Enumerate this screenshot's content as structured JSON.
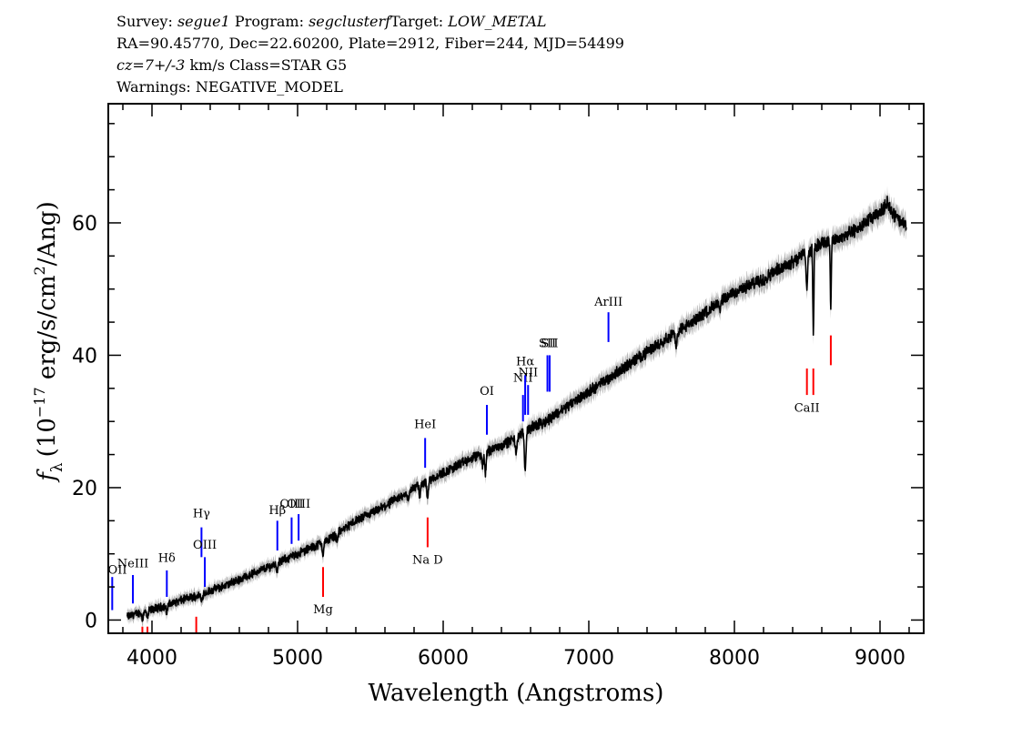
{
  "header": {
    "line1": {
      "survey_label": "Survey:",
      "survey": "segue1",
      "program_label": "Program:",
      "program": "segclusterf",
      "target_label": "Target:",
      "target": "LOW_METAL"
    },
    "line2": "RA=90.45770, Dec=22.60200, Plate=2912, Fiber=244, MJD=54499",
    "line3": {
      "cz": "cz=7+/-3",
      "rest": "km/s Class=STAR G5"
    },
    "line4": "Warnings: NEGATIVE_MODEL"
  },
  "chart_data": {
    "type": "line",
    "xlabel": "Wavelength (Angstroms)",
    "ylabel": {
      "f": "f",
      "sub": "λ",
      "pre": "(10",
      "exp": "−17",
      "post": " erg/s/cm",
      "exp2": "2",
      "tail": "/Ang)"
    },
    "xlim": [
      3700,
      9300
    ],
    "ylim": [
      -2,
      78
    ],
    "x_ticks": [
      4000,
      5000,
      6000,
      7000,
      8000,
      9000
    ],
    "y_ticks": [
      0,
      20,
      40,
      60
    ],
    "colors": {
      "spectrum": "#000000",
      "error": "#b4b4b4",
      "emission": "#0000ff",
      "absorption": "#ff0000"
    },
    "series": [
      {
        "x": [
          3830,
          3900,
          4000,
          4100,
          4200,
          4300,
          4400,
          4500,
          4600,
          4700,
          4800,
          4900,
          5000,
          5100,
          5200,
          5300,
          5400,
          5500,
          5600,
          5700,
          5800,
          5900,
          6000,
          6100,
          6200,
          6300,
          6400,
          6500,
          6600,
          6700,
          6800,
          6900,
          7000,
          7100,
          7200,
          7300,
          7400,
          7500,
          7600,
          7700,
          7800,
          7900,
          8000,
          8100,
          8200,
          8300,
          8400,
          8500,
          8600,
          8700,
          8800,
          8900,
          9000,
          9050,
          9100,
          9150,
          9180
        ],
        "y": [
          0.5,
          1.0,
          1.6,
          2.2,
          3.0,
          3.6,
          4.4,
          5.2,
          6.1,
          7.1,
          8.0,
          9.0,
          10.0,
          11.0,
          12.0,
          13.5,
          15.0,
          16.0,
          17.2,
          18.5,
          20.0,
          21.2,
          22.2,
          23.4,
          24.4,
          25.5,
          26.4,
          27.5,
          29.0,
          30.0,
          31.5,
          33.0,
          34.5,
          36.0,
          37.5,
          39.0,
          40.5,
          42.0,
          43.5,
          44.8,
          46.5,
          48.0,
          49.5,
          50.5,
          51.5,
          53.0,
          54.2,
          55.5,
          57.0,
          57.5,
          58.5,
          60.0,
          61.5,
          63.0,
          61.0,
          60.0,
          59.5
        ]
      }
    ],
    "absorption_features": [
      {
        "x": 3934,
        "depth": 1.0
      },
      {
        "x": 3969,
        "depth": 1.2
      },
      {
        "x": 4101,
        "depth": 1.0
      },
      {
        "x": 4340,
        "depth": 1.2
      },
      {
        "x": 4861,
        "depth": 1.2
      },
      {
        "x": 5175,
        "depth": 1.8
      },
      {
        "x": 5270,
        "depth": 1.0
      },
      {
        "x": 5760,
        "depth": 1.5
      },
      {
        "x": 5840,
        "depth": 1.8
      },
      {
        "x": 5893,
        "depth": 3.0
      },
      {
        "x": 6270,
        "depth": 2.0
      },
      {
        "x": 6290,
        "depth": 3.0
      },
      {
        "x": 6500,
        "depth": 2.5
      },
      {
        "x": 6563,
        "depth": 6.0
      },
      {
        "x": 7600,
        "depth": 2.5
      },
      {
        "x": 7900,
        "depth": 1.5
      },
      {
        "x": 8498,
        "depth": 5.0
      },
      {
        "x": 8542,
        "depth": 13.0
      },
      {
        "x": 8662,
        "depth": 10.0
      }
    ],
    "emission_lines": [
      {
        "label": "OII",
        "x": 3727,
        "y1": 1.5,
        "y2": 6.5,
        "label_y": 7.0
      },
      {
        "label": "NeIII",
        "x": 3869,
        "y1": 2.5,
        "y2": 6.8,
        "label_y": 8.0
      },
      {
        "label": "Hδ",
        "x": 4102,
        "y1": 3.5,
        "y2": 7.5,
        "label_y": 8.8
      },
      {
        "label": "Hγ",
        "x": 4340,
        "y1": 9.5,
        "y2": 14.0,
        "label_y": 15.5
      },
      {
        "label": "OIII",
        "x": 4363,
        "y1": 5.0,
        "y2": 9.5,
        "label_y": 10.8
      },
      {
        "label": "Hβ",
        "x": 4861,
        "y1": 10.5,
        "y2": 15.0,
        "label_y": 16.0
      },
      {
        "label": "OIII",
        "x": 4959,
        "y1": 11.5,
        "y2": 15.5,
        "label_y": 17.0
      },
      {
        "label": "OIII",
        "x": 5007,
        "y1": 12.0,
        "y2": 16.0,
        "label_y": 17.0
      },
      {
        "label": "HeI",
        "x": 5876,
        "y1": 23.0,
        "y2": 27.5,
        "label_y": 29.0
      },
      {
        "label": "OI",
        "x": 6300,
        "y1": 28.0,
        "y2": 32.5,
        "label_y": 34.0
      },
      {
        "label": "NII",
        "x": 6548,
        "y1": 30.0,
        "y2": 34.0,
        "label_y": 36.0
      },
      {
        "label": "Hα",
        "x": 6563,
        "y1": 31.0,
        "y2": 37.0,
        "label_y": 38.5
      },
      {
        "label": "NII",
        "x": 6583,
        "y1": 31.0,
        "y2": 35.5,
        "label_y": 36.8
      },
      {
        "label": "SII",
        "x": 6716,
        "y1": 34.5,
        "y2": 40.0,
        "label_y": 41.2
      },
      {
        "label": "SII",
        "x": 6731,
        "y1": 34.5,
        "y2": 40.0,
        "label_y": 41.2
      },
      {
        "label": "ArIII",
        "x": 7135,
        "y1": 42.0,
        "y2": 46.5,
        "label_y": 47.5
      }
    ],
    "absorption_lines": [
      {
        "label": "",
        "x": 3934,
        "y1": -2.0,
        "y2": -1.0,
        "label_y": -3.0
      },
      {
        "label": "",
        "x": 3969,
        "y1": -2.0,
        "y2": -1.0,
        "label_y": -3.0
      },
      {
        "label": "",
        "x": 4304,
        "y1": -2.0,
        "y2": 0.5,
        "label_y": -3.0
      },
      {
        "label": "Mg",
        "x": 5175,
        "y1": 3.5,
        "y2": 8.0,
        "label_y": 1.0
      },
      {
        "label": "Na D",
        "x": 5893,
        "y1": 11.0,
        "y2": 15.5,
        "label_y": 8.5
      },
      {
        "label": "CaII",
        "x": 8498,
        "y1": 34.0,
        "y2": 38.0,
        "label_y": 31.5
      },
      {
        "label": "",
        "x": 8542,
        "y1": 34.0,
        "y2": 38.0,
        "label_y": 31.5
      },
      {
        "label": "",
        "x": 8662,
        "y1": 38.5,
        "y2": 43.0,
        "label_y": 40.0
      }
    ]
  }
}
